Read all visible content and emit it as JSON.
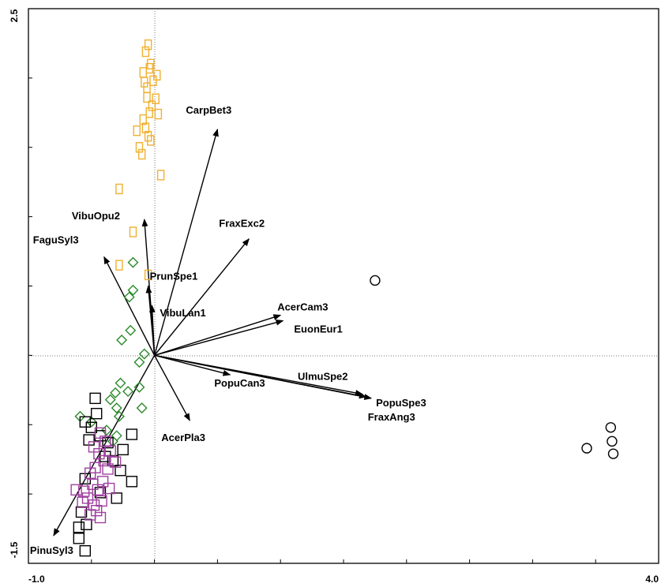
{
  "chart_data": {
    "type": "scatter",
    "title": "",
    "xlabel": "",
    "ylabel": "",
    "xlim": [
      -1.0,
      4.0
    ],
    "ylim": [
      -1.5,
      2.5
    ],
    "tick_labels": {
      "x_min": "-1.0",
      "x_max": "4.0",
      "y_min": "-1.5",
      "y_max": "2.5"
    },
    "grid": false,
    "arrows": [
      {
        "label": "CarpBet3",
        "x": 0.5,
        "y": 1.63
      },
      {
        "label": "VibuOpu2",
        "x": -0.08,
        "y": 0.98
      },
      {
        "label": "FraxExc2",
        "x": 0.75,
        "y": 0.84
      },
      {
        "label": "FaguSyl3",
        "x": -0.4,
        "y": 0.71
      },
      {
        "label": "PrunSpe1",
        "x": -0.05,
        "y": 0.5
      },
      {
        "label": "AcerCam3",
        "x": 1.0,
        "y": 0.29
      },
      {
        "label": "EuonEur1",
        "x": 1.02,
        "y": 0.25
      },
      {
        "label": "VibuLan1",
        "x": -0.02,
        "y": 0.36
      },
      {
        "label": "UlmuSpe2",
        "x": 1.65,
        "y": -0.28
      },
      {
        "label": "PopuSpe3",
        "x": 1.72,
        "y": -0.31
      },
      {
        "label": "FraxAng3",
        "x": 1.68,
        "y": -0.3
      },
      {
        "label": "PopuCan3",
        "x": 0.6,
        "y": -0.14
      },
      {
        "label": "AcerPla3",
        "x": 0.28,
        "y": -0.47
      },
      {
        "label": "PinuSyl3",
        "x": -0.8,
        "y": -1.3
      }
    ],
    "series": [
      {
        "marker": "circle",
        "color": "#000000",
        "points": [
          [
            3.43,
            -0.67
          ],
          [
            3.62,
            -0.52
          ],
          [
            3.63,
            -0.62
          ],
          [
            3.64,
            -0.71
          ],
          [
            1.75,
            0.54
          ]
        ]
      },
      {
        "marker": "rect",
        "color": "#f0b030",
        "points": [
          [
            -0.08,
            1.97
          ],
          [
            -0.06,
            1.93
          ],
          [
            -0.04,
            2.07
          ],
          [
            -0.07,
            2.19
          ],
          [
            -0.05,
            2.24
          ],
          [
            -0.03,
            2.1
          ],
          [
            -0.01,
            1.98
          ],
          [
            0.02,
            2.02
          ],
          [
            -0.06,
            1.86
          ],
          [
            -0.04,
            1.75
          ],
          [
            -0.02,
            1.8
          ],
          [
            0.01,
            1.85
          ],
          [
            -0.09,
            1.7
          ],
          [
            -0.07,
            1.64
          ],
          [
            -0.05,
            1.58
          ],
          [
            -0.03,
            1.55
          ],
          [
            -0.12,
            1.5
          ],
          [
            -0.1,
            1.45
          ],
          [
            -0.14,
            1.62
          ],
          [
            0.03,
            1.74
          ],
          [
            0.05,
            1.3
          ],
          [
            -0.28,
            1.2
          ],
          [
            -0.28,
            0.65
          ],
          [
            -0.17,
            0.89
          ],
          [
            -0.05,
            0.58
          ],
          [
            -0.09,
            2.04
          ]
        ]
      },
      {
        "marker": "diamond",
        "color": "#2a8a2a",
        "points": [
          [
            -0.17,
            0.67
          ],
          [
            -0.17,
            0.47
          ],
          [
            -0.2,
            0.42
          ],
          [
            -0.19,
            0.18
          ],
          [
            -0.26,
            0.11
          ],
          [
            -0.08,
            0.01
          ],
          [
            -0.12,
            -0.05
          ],
          [
            -0.21,
            -0.26
          ],
          [
            -0.27,
            -0.2
          ],
          [
            -0.31,
            -0.27
          ],
          [
            -0.35,
            -0.32
          ],
          [
            -0.3,
            -0.38
          ],
          [
            -0.12,
            -0.23
          ],
          [
            -0.1,
            -0.38
          ],
          [
            -0.28,
            -0.44
          ],
          [
            -0.3,
            -0.58
          ],
          [
            -0.33,
            -0.62
          ],
          [
            -0.38,
            -0.54
          ],
          [
            -0.59,
            -0.44
          ],
          [
            -0.5,
            -0.48
          ]
        ]
      },
      {
        "marker": "rect",
        "color": "#000000",
        "points": [
          [
            -0.47,
            -0.31
          ],
          [
            -0.46,
            -0.42
          ],
          [
            -0.5,
            -0.52
          ],
          [
            -0.43,
            -0.58
          ],
          [
            -0.37,
            -0.63
          ],
          [
            -0.25,
            -0.68
          ],
          [
            -0.18,
            -0.57
          ],
          [
            -0.55,
            -0.48
          ],
          [
            -0.52,
            -0.61
          ],
          [
            -0.33,
            -0.76
          ],
          [
            -0.39,
            -0.73
          ],
          [
            -0.27,
            -0.83
          ],
          [
            -0.3,
            -1.03
          ],
          [
            -0.55,
            -0.89
          ],
          [
            -0.58,
            -1.13
          ],
          [
            -0.6,
            -1.24
          ],
          [
            -0.54,
            -1.22
          ],
          [
            -0.6,
            -1.32
          ],
          [
            -0.55,
            -1.41
          ],
          [
            -0.43,
            -0.99
          ],
          [
            -0.18,
            -0.91
          ]
        ]
      },
      {
        "marker": "rect",
        "color": "#a040a0",
        "points": [
          [
            -0.43,
            -0.56
          ],
          [
            -0.39,
            -0.62
          ],
          [
            -0.35,
            -0.69
          ],
          [
            -0.44,
            -0.71
          ],
          [
            -0.47,
            -0.81
          ],
          [
            -0.37,
            -0.82
          ],
          [
            -0.31,
            -0.77
          ],
          [
            -0.51,
            -0.85
          ],
          [
            -0.49,
            -0.93
          ],
          [
            -0.45,
            -0.97
          ],
          [
            -0.41,
            -0.91
          ],
          [
            -0.36,
            -0.96
          ],
          [
            -0.62,
            -0.97
          ],
          [
            -0.56,
            -0.98
          ],
          [
            -0.53,
            -1.03
          ],
          [
            -0.48,
            -1.08
          ],
          [
            -0.46,
            -1.12
          ],
          [
            -0.42,
            -1.05
          ],
          [
            -0.51,
            -1.15
          ],
          [
            -0.57,
            -1.06
          ],
          [
            -0.43,
            -1.17
          ],
          [
            -0.48,
            -0.66
          ],
          [
            -0.4,
            -0.76
          ]
        ]
      }
    ]
  }
}
